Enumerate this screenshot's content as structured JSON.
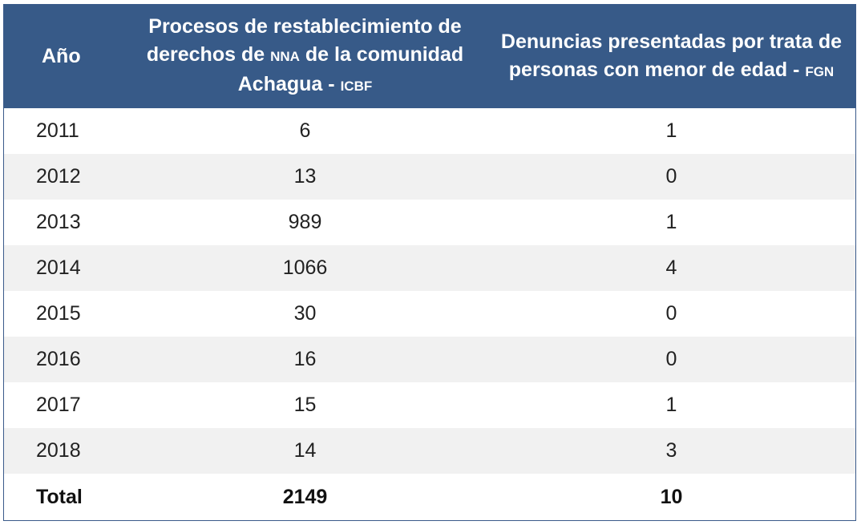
{
  "header": {
    "year": "Año",
    "icbf_main": "Procesos de restablecimiento de derechos de",
    "icbf_abbr1": "NNA",
    "icbf_mid": "de la comunidad Achagua -",
    "icbf_abbr2": "ICBF",
    "fgn_main": "Denuncias presentadas por trata de personas con menor de edad -",
    "fgn_abbr": "FGN"
  },
  "rows": [
    {
      "year": "2011",
      "icbf": "6",
      "fgn": "1"
    },
    {
      "year": "2012",
      "icbf": "13",
      "fgn": "0"
    },
    {
      "year": "2013",
      "icbf": "989",
      "fgn": "1"
    },
    {
      "year": "2014",
      "icbf": "1066",
      "fgn": "4"
    },
    {
      "year": "2015",
      "icbf": "30",
      "fgn": "0"
    },
    {
      "year": "2016",
      "icbf": "16",
      "fgn": "0"
    },
    {
      "year": "2017",
      "icbf": "15",
      "fgn": "1"
    },
    {
      "year": "2018",
      "icbf": "14",
      "fgn": "3"
    }
  ],
  "total": {
    "label": "Total",
    "icbf": "2149",
    "fgn": "10"
  },
  "colors": {
    "header_bg": "#375a88",
    "stripe": "#f1f1f1"
  }
}
